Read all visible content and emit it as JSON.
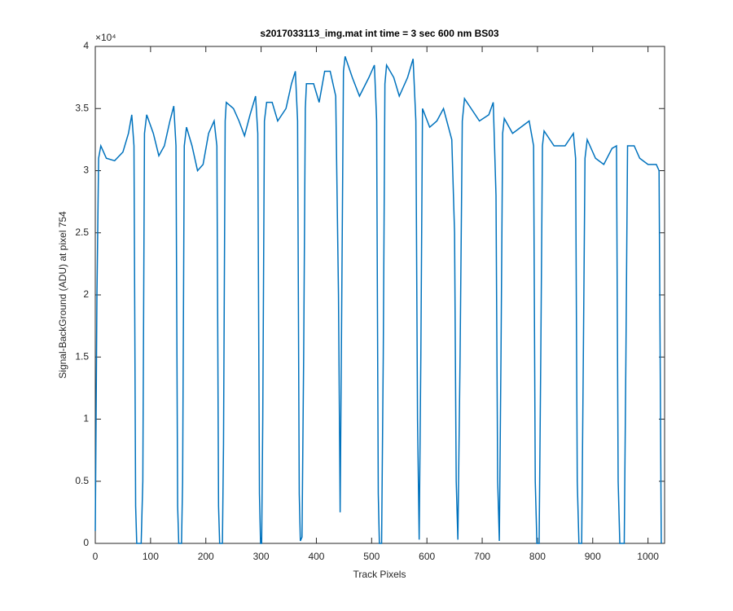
{
  "chart_data": {
    "type": "line",
    "title": "s2017033113_img.mat int time = 3 sec  600 nm BS03",
    "x_label": "Track Pixels",
    "y_label": "Signal-BackGround (ADU) at pixel 754",
    "y_exponent": "×10⁴",
    "xlim": [
      0,
      1030
    ],
    "ylim": [
      0,
      4
    ],
    "xticks": [
      0,
      100,
      200,
      300,
      400,
      500,
      600,
      700,
      800,
      900,
      1000
    ],
    "yticks": [
      0,
      0.5,
      1,
      1.5,
      2,
      2.5,
      3,
      3.5,
      4
    ],
    "grid": false,
    "series": [
      {
        "color": "#0072bd",
        "x": [
          0,
          3,
          6,
          10,
          20,
          35,
          50,
          60,
          66,
          70,
          73,
          75,
          83,
          86,
          89,
          93,
          105,
          115,
          125,
          135,
          142,
          146,
          149,
          151,
          156,
          158,
          161,
          165,
          175,
          185,
          195,
          205,
          215,
          220,
          223,
          225,
          230,
          232,
          235,
          237,
          250,
          260,
          270,
          280,
          290,
          294,
          297,
          299,
          301,
          303,
          306,
          310,
          320,
          330,
          345,
          355,
          362,
          366,
          369,
          371,
          374,
          377,
          380,
          382,
          395,
          405,
          415,
          425,
          435,
          440,
          443,
          446,
          449,
          452,
          465,
          478,
          495,
          505,
          509,
          512,
          514,
          518,
          521,
          524,
          527,
          540,
          550,
          565,
          575,
          580,
          583,
          586,
          589,
          592,
          605,
          618,
          630,
          645,
          650,
          653,
          656,
          660,
          664,
          668,
          680,
          695,
          712,
          720,
          725,
          728,
          731,
          734,
          737,
          740,
          755,
          770,
          785,
          793,
          796,
          799,
          803,
          806,
          809,
          812,
          830,
          850,
          865,
          869,
          872,
          875,
          880,
          883,
          886,
          890,
          905,
          920,
          935,
          943,
          946,
          949,
          957,
          960,
          963,
          975,
          985,
          1000,
          1015,
          1020,
          1024
        ],
        "values": [
          0.1,
          2.0,
          3.1,
          3.2,
          3.1,
          3.08,
          3.15,
          3.3,
          3.45,
          3.2,
          0.3,
          0,
          0,
          0.5,
          3.3,
          3.45,
          3.3,
          3.12,
          3.2,
          3.4,
          3.52,
          3.2,
          0.3,
          0,
          0,
          0.5,
          3.2,
          3.35,
          3.2,
          3.0,
          3.05,
          3.3,
          3.4,
          3.2,
          0.3,
          0,
          0,
          0.8,
          3.4,
          3.55,
          3.5,
          3.4,
          3.28,
          3.45,
          3.6,
          3.3,
          0.4,
          0,
          0,
          1.0,
          3.4,
          3.55,
          3.55,
          3.4,
          3.5,
          3.7,
          3.8,
          3.4,
          0.4,
          0.02,
          0.05,
          1.5,
          3.5,
          3.7,
          3.7,
          3.55,
          3.8,
          3.8,
          3.6,
          2.0,
          0.25,
          2.0,
          3.8,
          3.92,
          3.75,
          3.6,
          3.75,
          3.85,
          3.4,
          0.4,
          0,
          0,
          1.5,
          3.7,
          3.85,
          3.75,
          3.6,
          3.75,
          3.9,
          3.4,
          1.0,
          0.03,
          1.5,
          3.5,
          3.35,
          3.4,
          3.5,
          3.25,
          2.5,
          0.5,
          0.03,
          1.5,
          3.4,
          3.58,
          3.5,
          3.4,
          3.45,
          3.55,
          2.8,
          0.5,
          0.02,
          1.5,
          3.3,
          3.42,
          3.3,
          3.35,
          3.4,
          3.2,
          0.5,
          0,
          0,
          1.5,
          3.2,
          3.32,
          3.2,
          3.2,
          3.3,
          3.1,
          0.5,
          0,
          0,
          1.5,
          3.1,
          3.25,
          3.1,
          3.05,
          3.18,
          3.2,
          0.5,
          0,
          0,
          1.5,
          3.2,
          3.2,
          3.1,
          3.05,
          3.05,
          3.0,
          0
        ]
      }
    ]
  }
}
